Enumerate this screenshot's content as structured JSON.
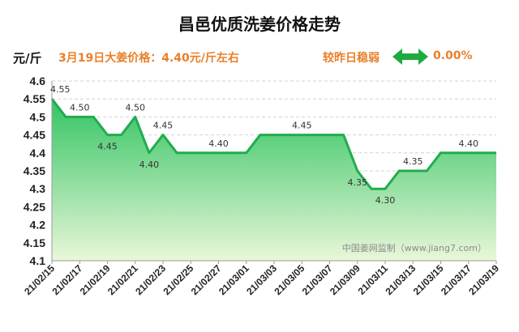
{
  "header": {
    "title": "昌邑优质洗姜价格走势",
    "unit": "元/斤",
    "price_note": "3月19日大姜价格：4.40元/斤左右",
    "compare_label": "较昨日稳弱",
    "compare_value": "0.00%"
  },
  "colors": {
    "line": "#21ac4f",
    "fill_top": "#33c463",
    "fill_bottom": "#e9f7d9",
    "accent": "#e8802a",
    "arrow": "#1faa3f"
  },
  "icons": {
    "compare": "double-arrow-icon"
  },
  "watermark": "中国姜网监制（www.jiang7.com）",
  "chart_data": {
    "type": "area",
    "title": "昌邑优质洗姜价格走势",
    "ylabel": "元/斤",
    "ylim": [
      4.1,
      4.6
    ],
    "yticks": [
      "4.6",
      "4.55",
      "4.5",
      "4.45",
      "4.4",
      "4.35",
      "4.3",
      "4.25",
      "4.2",
      "4.15",
      "4.1"
    ],
    "xticks": [
      "21/02/15",
      "21/02/17",
      "21/02/19",
      "21/02/21",
      "21/02/23",
      "21/02/25",
      "21/02/27",
      "21/03/01",
      "21/03/03",
      "21/03/05",
      "21/03/07",
      "21/03/09",
      "21/03/11",
      "21/03/13",
      "21/03/15",
      "21/03/17",
      "21/03/19"
    ],
    "grid": true,
    "series": [
      {
        "points": [
          [
            "21/02/15",
            4.55
          ],
          [
            "21/02/16",
            4.5
          ],
          [
            "21/02/17",
            4.5
          ],
          [
            "21/02/18",
            4.5
          ],
          [
            "21/02/19",
            4.45
          ],
          [
            "21/02/20",
            4.45
          ],
          [
            "21/02/21",
            4.5
          ],
          [
            "21/02/22",
            4.4
          ],
          [
            "21/02/23",
            4.45
          ],
          [
            "21/02/24",
            4.4
          ],
          [
            "21/02/25",
            4.4
          ],
          [
            "21/02/26",
            4.4
          ],
          [
            "21/02/27",
            4.4
          ],
          [
            "21/02/28",
            4.4
          ],
          [
            "21/03/01",
            4.4
          ],
          [
            "21/03/02",
            4.45
          ],
          [
            "21/03/03",
            4.45
          ],
          [
            "21/03/04",
            4.45
          ],
          [
            "21/03/05",
            4.45
          ],
          [
            "21/03/06",
            4.45
          ],
          [
            "21/03/07",
            4.45
          ],
          [
            "21/03/08",
            4.45
          ],
          [
            "21/03/09",
            4.35
          ],
          [
            "21/03/10",
            4.3
          ],
          [
            "21/03/11",
            4.3
          ],
          [
            "21/03/12",
            4.35
          ],
          [
            "21/03/13",
            4.35
          ],
          [
            "21/03/14",
            4.35
          ],
          [
            "21/03/15",
            4.4
          ],
          [
            "21/03/16",
            4.4
          ],
          [
            "21/03/17",
            4.4
          ],
          [
            "21/03/18",
            4.4
          ],
          [
            "21/03/19",
            4.4
          ]
        ]
      }
    ],
    "data_labels": [
      {
        "x": "21/02/15",
        "text": "4.55"
      },
      {
        "x": "21/02/17",
        "text": "4.50"
      },
      {
        "x": "21/02/19",
        "text": "4.45"
      },
      {
        "x": "21/02/21",
        "text": "4.50"
      },
      {
        "x": "21/02/22",
        "text": "4.40"
      },
      {
        "x": "21/02/23",
        "text": "4.45"
      },
      {
        "x": "21/02/27",
        "text": "4.40"
      },
      {
        "x": "21/03/05",
        "text": "4.45"
      },
      {
        "x": "21/03/09",
        "text": "4.35"
      },
      {
        "x": "21/03/11",
        "text": "4.30"
      },
      {
        "x": "21/03/13",
        "text": "4.35"
      },
      {
        "x": "21/03/17",
        "text": "4.40"
      }
    ]
  }
}
